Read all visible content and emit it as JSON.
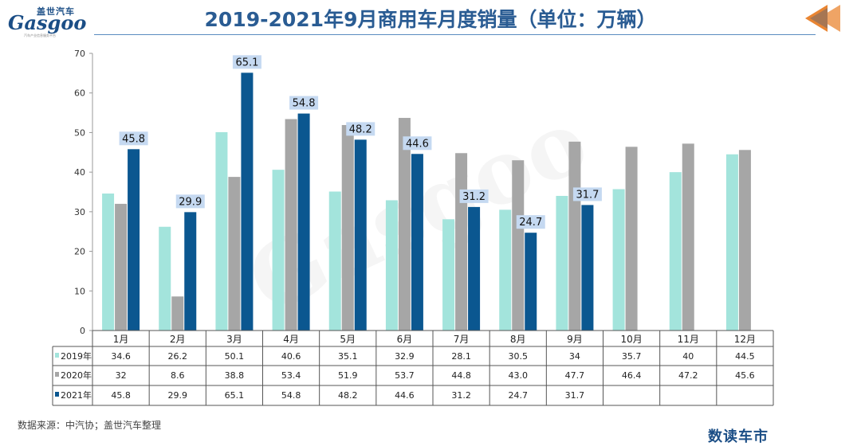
{
  "header": {
    "logo_cn": "盖世汽车",
    "logo_en": "Gasgoo",
    "logo_sub": "汽车产业信息服务平台",
    "title": "2019-2021年9月商用车月度销量（单位：万辆）"
  },
  "footer": {
    "source": "数据来源：中汽协；盖世汽车整理",
    "brand": "数读车市"
  },
  "colors": {
    "s2019": "#a3e4dc",
    "s2020": "#a6a6a6",
    "s2021": "#0b5790",
    "label_bg": "#c5d9f1",
    "title": "#2a5c93",
    "arrow": "#e98532"
  },
  "chart_data": {
    "type": "bar",
    "title": "2019-2021年9月商用车月度销量（单位：万辆）",
    "categories": [
      "1月",
      "2月",
      "3月",
      "4月",
      "5月",
      "6月",
      "7月",
      "8月",
      "9月",
      "10月",
      "11月",
      "12月"
    ],
    "ylim": [
      0,
      70
    ],
    "yticks": [
      0,
      10,
      20,
      30,
      40,
      50,
      60,
      70
    ],
    "grid": false,
    "legend": "data-table",
    "series": [
      {
        "name": "2019年",
        "values": [
          "34.6",
          "26.2",
          "50.1",
          "40.6",
          "35.1",
          "32.9",
          "28.1",
          "30.5",
          "34",
          "35.7",
          "40",
          "44.5"
        ]
      },
      {
        "name": "2020年",
        "values": [
          "32",
          "8.6",
          "38.8",
          "53.4",
          "51.9",
          "53.7",
          "44.8",
          "43.0",
          "47.7",
          "46.4",
          "47.2",
          "45.6"
        ]
      },
      {
        "name": "2021年",
        "values": [
          "45.8",
          "29.9",
          "65.1",
          "54.8",
          "48.2",
          "44.6",
          "31.2",
          "24.7",
          "31.7",
          null,
          null,
          null
        ]
      }
    ],
    "data_labels": {
      "series": "2021年",
      "values": [
        "45.8",
        "29.9",
        "65.1",
        "54.8",
        "48.2",
        "44.6",
        "31.2",
        "24.7",
        "31.7"
      ]
    }
  }
}
